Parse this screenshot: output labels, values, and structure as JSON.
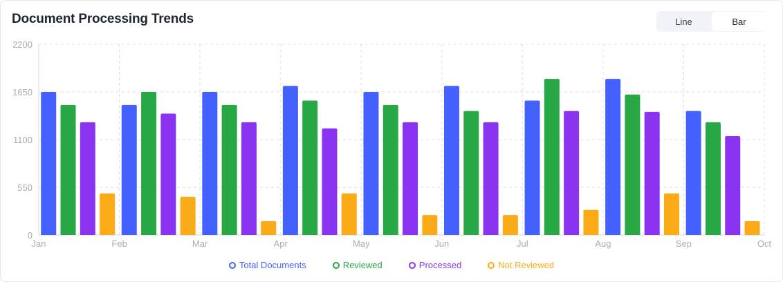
{
  "header": {
    "title": "Document Processing Trends"
  },
  "toggle": {
    "options": [
      "Line",
      "Bar"
    ],
    "active": "Bar"
  },
  "colors": {
    "Total Documents": "#4361ff",
    "Reviewed": "#28a745",
    "Processed": "#8a33f0",
    "Not Reviewed": "#fbab17"
  },
  "chart_data": {
    "type": "bar",
    "title": "Document Processing Trends",
    "xlabel": "",
    "ylabel": "",
    "ylim": [
      0,
      2200
    ],
    "yticks": [
      0,
      550,
      1100,
      1650,
      2200
    ],
    "xtick_labels": [
      "Jan",
      "Feb",
      "Mar",
      "Apr",
      "May",
      "Jun",
      "Jul",
      "Aug",
      "Sep",
      "Oct"
    ],
    "categories": [
      "Jan",
      "Feb",
      "Mar",
      "Apr",
      "May",
      "Jun",
      "Jul",
      "Aug",
      "Sep"
    ],
    "grid": true,
    "legend_position": "bottom",
    "series": [
      {
        "name": "Total Documents",
        "values": [
          1650,
          1500,
          1650,
          1720,
          1650,
          1720,
          1550,
          1800,
          1430
        ]
      },
      {
        "name": "Reviewed",
        "values": [
          1500,
          1650,
          1500,
          1550,
          1500,
          1430,
          1800,
          1620,
          1300
        ]
      },
      {
        "name": "Processed",
        "values": [
          1300,
          1400,
          1300,
          1230,
          1300,
          1300,
          1430,
          1420,
          1140
        ]
      },
      {
        "name": "Not Reviewed",
        "values": [
          480,
          440,
          160,
          480,
          230,
          230,
          290,
          480,
          160
        ]
      }
    ]
  },
  "legend": {
    "items": [
      "Total Documents",
      "Reviewed",
      "Processed",
      "Not Reviewed"
    ]
  }
}
